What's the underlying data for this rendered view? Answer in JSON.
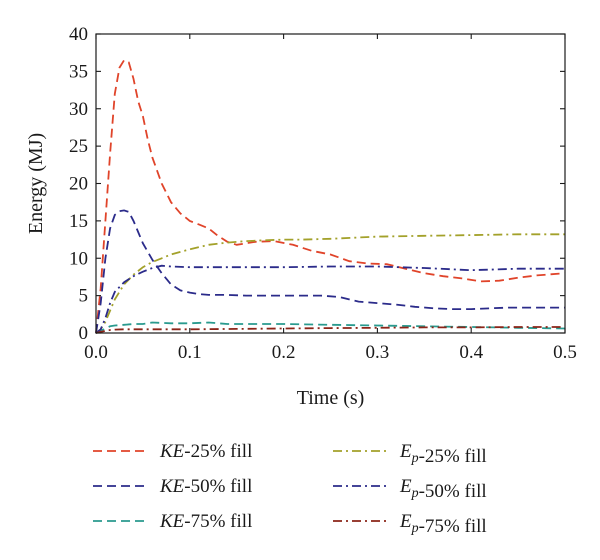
{
  "chart_data": {
    "type": "line",
    "title": "",
    "xlabel": "Time (s)",
    "ylabel": "Energy (MJ)",
    "xlim": [
      0,
      0.5
    ],
    "ylim": [
      0,
      40
    ],
    "xticks": [
      0.0,
      0.1,
      0.2,
      0.3,
      0.4,
      0.5
    ],
    "xtick_labels": [
      "0.0",
      "0.1",
      "0.2",
      "0.3",
      "0.4",
      "0.5"
    ],
    "yticks": [
      0,
      5,
      10,
      15,
      20,
      25,
      30,
      35,
      40
    ],
    "ytick_labels": [
      "0",
      "5",
      "10",
      "15",
      "20",
      "25",
      "30",
      "35",
      "40"
    ],
    "grid": false,
    "legend_position": "below",
    "series": [
      {
        "name_parts": [
          {
            "text": "KE",
            "style": "italic"
          },
          {
            "text": "-25% fill"
          }
        ],
        "color": "#e0442a",
        "dash": "dash",
        "x": [
          0,
          0.005,
          0.01,
          0.015,
          0.02,
          0.025,
          0.03,
          0.035,
          0.04,
          0.045,
          0.05,
          0.055,
          0.06,
          0.07,
          0.08,
          0.09,
          0.1,
          0.11,
          0.12,
          0.13,
          0.14,
          0.15,
          0.17,
          0.19,
          0.21,
          0.23,
          0.25,
          0.27,
          0.29,
          0.31,
          0.33,
          0.35,
          0.37,
          0.39,
          0.41,
          0.43,
          0.45,
          0.47,
          0.5
        ],
        "y": [
          0,
          6,
          15,
          24,
          32,
          35.5,
          36.5,
          36.2,
          34,
          31,
          29,
          26,
          23.5,
          20,
          17.5,
          16,
          15,
          14.5,
          14,
          13,
          12.2,
          11.8,
          12.2,
          12.3,
          11.8,
          11,
          10.5,
          9.6,
          9.3,
          9.2,
          8.6,
          8,
          7.6,
          7.3,
          6.9,
          7,
          7.4,
          7.7,
          8
        ]
      },
      {
        "name_parts": [
          {
            "text": "KE",
            "style": "italic"
          },
          {
            "text": "-50% fill"
          }
        ],
        "color": "#2b2b8a",
        "dash": "dash",
        "x": [
          0,
          0.005,
          0.01,
          0.015,
          0.02,
          0.025,
          0.03,
          0.035,
          0.04,
          0.045,
          0.05,
          0.06,
          0.07,
          0.08,
          0.09,
          0.1,
          0.11,
          0.12,
          0.14,
          0.16,
          0.18,
          0.2,
          0.22,
          0.24,
          0.26,
          0.28,
          0.3,
          0.32,
          0.34,
          0.36,
          0.38,
          0.4,
          0.42,
          0.44,
          0.46,
          0.48,
          0.5
        ],
        "y": [
          0,
          4,
          10,
          14,
          15.8,
          16.3,
          16.4,
          16.2,
          15,
          13.5,
          12,
          9.8,
          8,
          6.5,
          5.7,
          5.4,
          5.2,
          5.1,
          5.1,
          5.0,
          5.0,
          5.0,
          5.0,
          5.0,
          4.8,
          4.2,
          4.0,
          3.8,
          3.5,
          3.3,
          3.2,
          3.2,
          3.3,
          3.4,
          3.4,
          3.4,
          3.4
        ]
      },
      {
        "name_parts": [
          {
            "text": "KE",
            "style": "italic"
          },
          {
            "text": "-75% fill"
          }
        ],
        "color": "#2a9a8e",
        "dash": "dash",
        "x": [
          0,
          0.005,
          0.01,
          0.015,
          0.02,
          0.03,
          0.04,
          0.05,
          0.06,
          0.08,
          0.1,
          0.12,
          0.14,
          0.16,
          0.2,
          0.25,
          0.3,
          0.35,
          0.4,
          0.45,
          0.5
        ],
        "y": [
          0,
          0.3,
          0.6,
          0.9,
          1.0,
          1.1,
          1.2,
          1.2,
          1.4,
          1.3,
          1.3,
          1.4,
          1.2,
          1.2,
          1.2,
          1.1,
          1.0,
          0.9,
          0.8,
          0.7,
          0.6
        ]
      },
      {
        "name_parts": [
          {
            "text": "E",
            "style": "italic"
          },
          {
            "text": "p",
            "style": "italic",
            "baseline": "sub"
          },
          {
            "text": "-25% fill"
          }
        ],
        "color": "#a3a12a",
        "dash": "dashdot",
        "x": [
          0,
          0.005,
          0.01,
          0.015,
          0.02,
          0.03,
          0.04,
          0.05,
          0.06,
          0.07,
          0.08,
          0.1,
          0.12,
          0.14,
          0.16,
          0.18,
          0.2,
          0.22,
          0.25,
          0.3,
          0.35,
          0.4,
          0.45,
          0.5
        ],
        "y": [
          0,
          0.5,
          1.5,
          3,
          4.5,
          6.5,
          7.8,
          8.8,
          9.5,
          10.0,
          10.5,
          11.2,
          11.8,
          12.1,
          12.3,
          12.4,
          12.5,
          12.5,
          12.6,
          12.9,
          13.0,
          13.1,
          13.2,
          13.2
        ]
      },
      {
        "name_parts": [
          {
            "text": "E",
            "style": "italic"
          },
          {
            "text": "p",
            "style": "italic",
            "baseline": "sub"
          },
          {
            "text": "-50% fill"
          }
        ],
        "color": "#2b2b8a",
        "dash": "dashdot",
        "x": [
          0,
          0.005,
          0.01,
          0.015,
          0.02,
          0.03,
          0.04,
          0.05,
          0.06,
          0.07,
          0.08,
          0.1,
          0.15,
          0.2,
          0.25,
          0.3,
          0.35,
          0.4,
          0.45,
          0.5
        ],
        "y": [
          0,
          0.5,
          2.0,
          4.0,
          5.5,
          6.8,
          7.6,
          8.2,
          8.7,
          9.0,
          8.9,
          8.8,
          8.8,
          8.8,
          8.9,
          8.9,
          8.7,
          8.4,
          8.6,
          8.6
        ]
      },
      {
        "name_parts": [
          {
            "text": "E",
            "style": "italic"
          },
          {
            "text": "p",
            "style": "italic",
            "baseline": "sub"
          },
          {
            "text": "-75% fill"
          }
        ],
        "color": "#8b2418",
        "dash": "dashdot",
        "x": [
          0,
          0.005,
          0.01,
          0.015,
          0.02,
          0.03,
          0.05,
          0.07,
          0.1,
          0.15,
          0.2,
          0.25,
          0.3,
          0.35,
          0.4,
          0.45,
          0.5
        ],
        "y": [
          0,
          0.15,
          0.3,
          0.4,
          0.45,
          0.5,
          0.5,
          0.5,
          0.5,
          0.55,
          0.6,
          0.65,
          0.7,
          0.75,
          0.75,
          0.8,
          0.8
        ]
      }
    ]
  }
}
